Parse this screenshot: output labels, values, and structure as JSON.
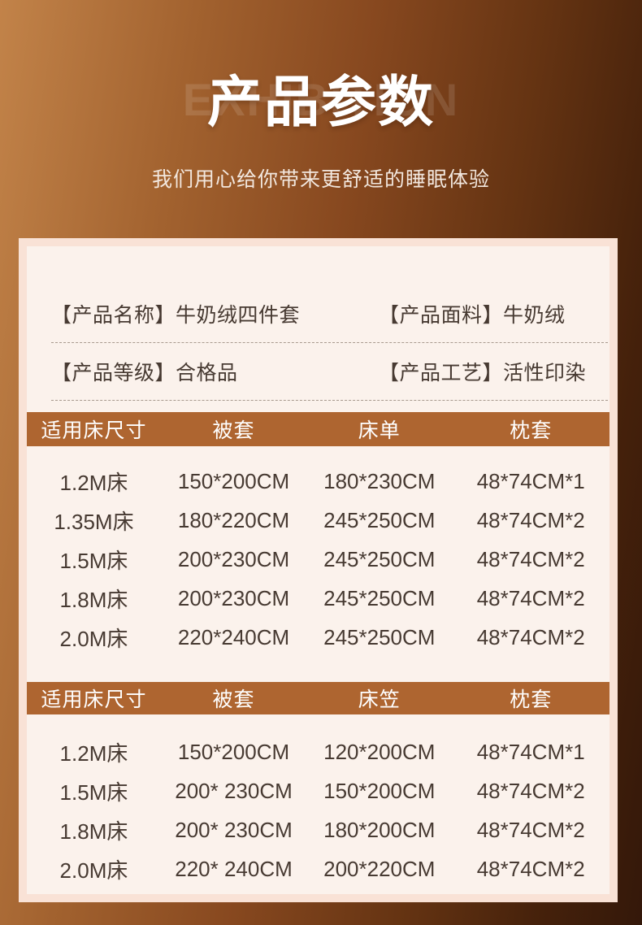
{
  "hero": {
    "watermark": "EXHIBITION",
    "title": "产品参数",
    "subtitle": "我们用心给你带来更舒适的睡眠体验"
  },
  "info": {
    "items": [
      {
        "label": "【产品名称】",
        "value": "牛奶绒四件套"
      },
      {
        "label": "【产品面料】",
        "value": "牛奶绒"
      },
      {
        "label": "【产品等级】",
        "value": "合格品"
      },
      {
        "label": "【产品工艺】",
        "value": "活性印染"
      }
    ]
  },
  "tables": [
    {
      "headers": [
        "适用床尺寸",
        "被套",
        "床单",
        "枕套"
      ],
      "rows": [
        [
          "1.2M床",
          "150*200CM",
          "180*230CM",
          "48*74CM*1"
        ],
        [
          "1.35M床",
          "180*220CM",
          "245*250CM",
          "48*74CM*2"
        ],
        [
          "1.5M床",
          "200*230CM",
          "245*250CM",
          "48*74CM*2"
        ],
        [
          "1.8M床",
          "200*230CM",
          "245*250CM",
          "48*74CM*2"
        ],
        [
          "2.0M床",
          "220*240CM",
          "245*250CM",
          "48*74CM*2"
        ]
      ]
    },
    {
      "headers": [
        "适用床尺寸",
        "被套",
        "床笠",
        "枕套"
      ],
      "rows": [
        [
          "1.2M床",
          "150*200CM",
          "120*200CM",
          "48*74CM*1"
        ],
        [
          "1.5M床",
          "200* 230CM",
          "150*200CM",
          "48*74CM*2"
        ],
        [
          "1.8M床",
          "200* 230CM",
          "180*200CM",
          "48*74CM*2"
        ],
        [
          "2.0M床",
          "220* 240CM",
          "200*220CM",
          "48*74CM*2"
        ]
      ]
    }
  ],
  "colors": {
    "background_left": "#c28349",
    "background_right": "#34180a",
    "header_bar": "#ae6530",
    "card_background": "#fbf2ec",
    "card_border": "#f9e2d6",
    "text_dark": "#473a32"
  }
}
